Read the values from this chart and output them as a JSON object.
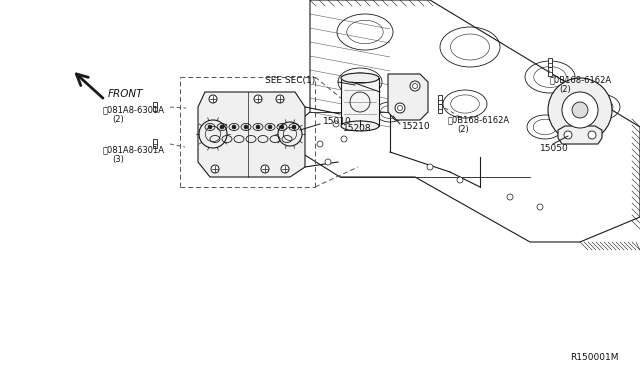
{
  "bg_color": "#ffffff",
  "fig_width": 6.4,
  "fig_height": 3.72,
  "dpi": 100,
  "lc": "#1a1a1a",
  "lc2": "#444444",
  "labels": {
    "see_sec11": "SEE SEC(1)",
    "part_15010": "15010",
    "part_15208": "15208",
    "part_15210": "15210",
    "part_15050": "15050",
    "bolt_b_top": "B081A8-6301A\n  (3)",
    "bolt_b_bot": "B081A8-6301A\n  (2)",
    "bolt_d_top": "B0B168-6162A\n  (2)",
    "bolt_d_bot": "B0B168-6162A\n  (2)",
    "front": "FRONT",
    "ref": "R150001M"
  }
}
